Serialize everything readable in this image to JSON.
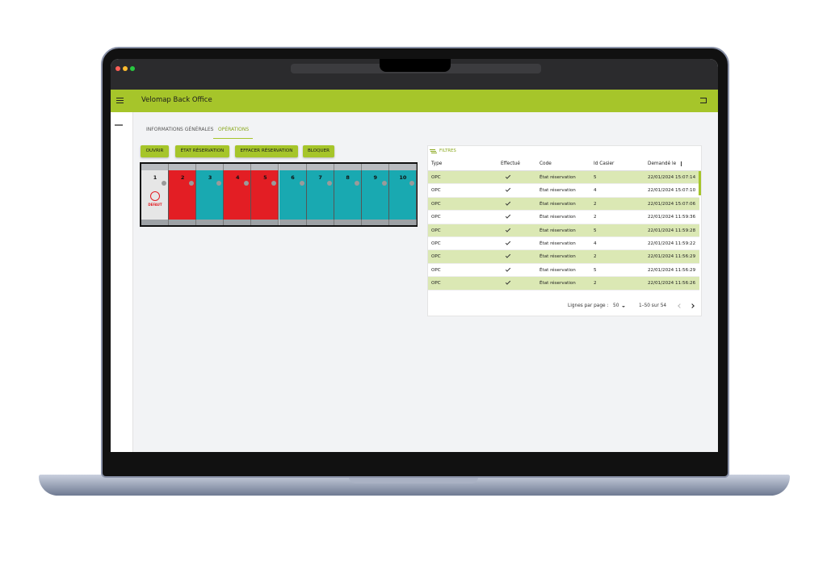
{
  "header": {
    "title": "Velomap Back Office"
  },
  "tabs": [
    "INFORMATIONS GÉNÉRALES",
    "OPÉRATIONS"
  ],
  "actions": [
    "OUVRIR",
    "ÉTAT RÉSERVATION",
    "EFFACER RÉSERVATION",
    "BLOQUER"
  ],
  "lockers": [
    {
      "number": 1,
      "color": "#e6e6e6",
      "label": "DEFAUT"
    },
    {
      "number": 2,
      "color": "#e31e24"
    },
    {
      "number": 3,
      "color": "#19a9b1"
    },
    {
      "number": 4,
      "color": "#e31e24"
    },
    {
      "number": 5,
      "color": "#e31e24"
    },
    {
      "number": 6,
      "color": "#19a9b1"
    },
    {
      "number": 7,
      "color": "#19a9b1"
    },
    {
      "number": 8,
      "color": "#19a9b1"
    },
    {
      "number": 9,
      "color": "#19a9b1"
    },
    {
      "number": 10,
      "color": "#19a9b1"
    }
  ],
  "table": {
    "filter": "FILTRES",
    "columns": [
      "Type",
      "Effectué",
      "Code",
      "Id Casier",
      "Demandé le"
    ],
    "rows": [
      [
        "OPC",
        true,
        "État réservation",
        5,
        "22/01/2024 15:07:14"
      ],
      [
        "OPC",
        true,
        "État réservation",
        4,
        "22/01/2024 15:07:10"
      ],
      [
        "OPC",
        true,
        "État réservation",
        2,
        "22/01/2024 15:07:06"
      ],
      [
        "OPC",
        true,
        "État réservation",
        2,
        "22/01/2024 11:59:36"
      ],
      [
        "OPC",
        true,
        "État réservation",
        5,
        "22/01/2024 11:59:28"
      ],
      [
        "OPC",
        true,
        "État réservation",
        4,
        "22/01/2024 11:59:22"
      ],
      [
        "OPC",
        true,
        "État réservation",
        2,
        "22/01/2024 11:56:29"
      ],
      [
        "OPC",
        true,
        "État réservation",
        5,
        "22/01/2024 11:56:29"
      ],
      [
        "OPC",
        true,
        "État réservation",
        2,
        "22/01/2024 11:56:26"
      ]
    ],
    "pagination": {
      "rows_per_page_label": "Lignes par page :",
      "rows_per_page": 50,
      "range": "1–50 sur 54"
    }
  }
}
